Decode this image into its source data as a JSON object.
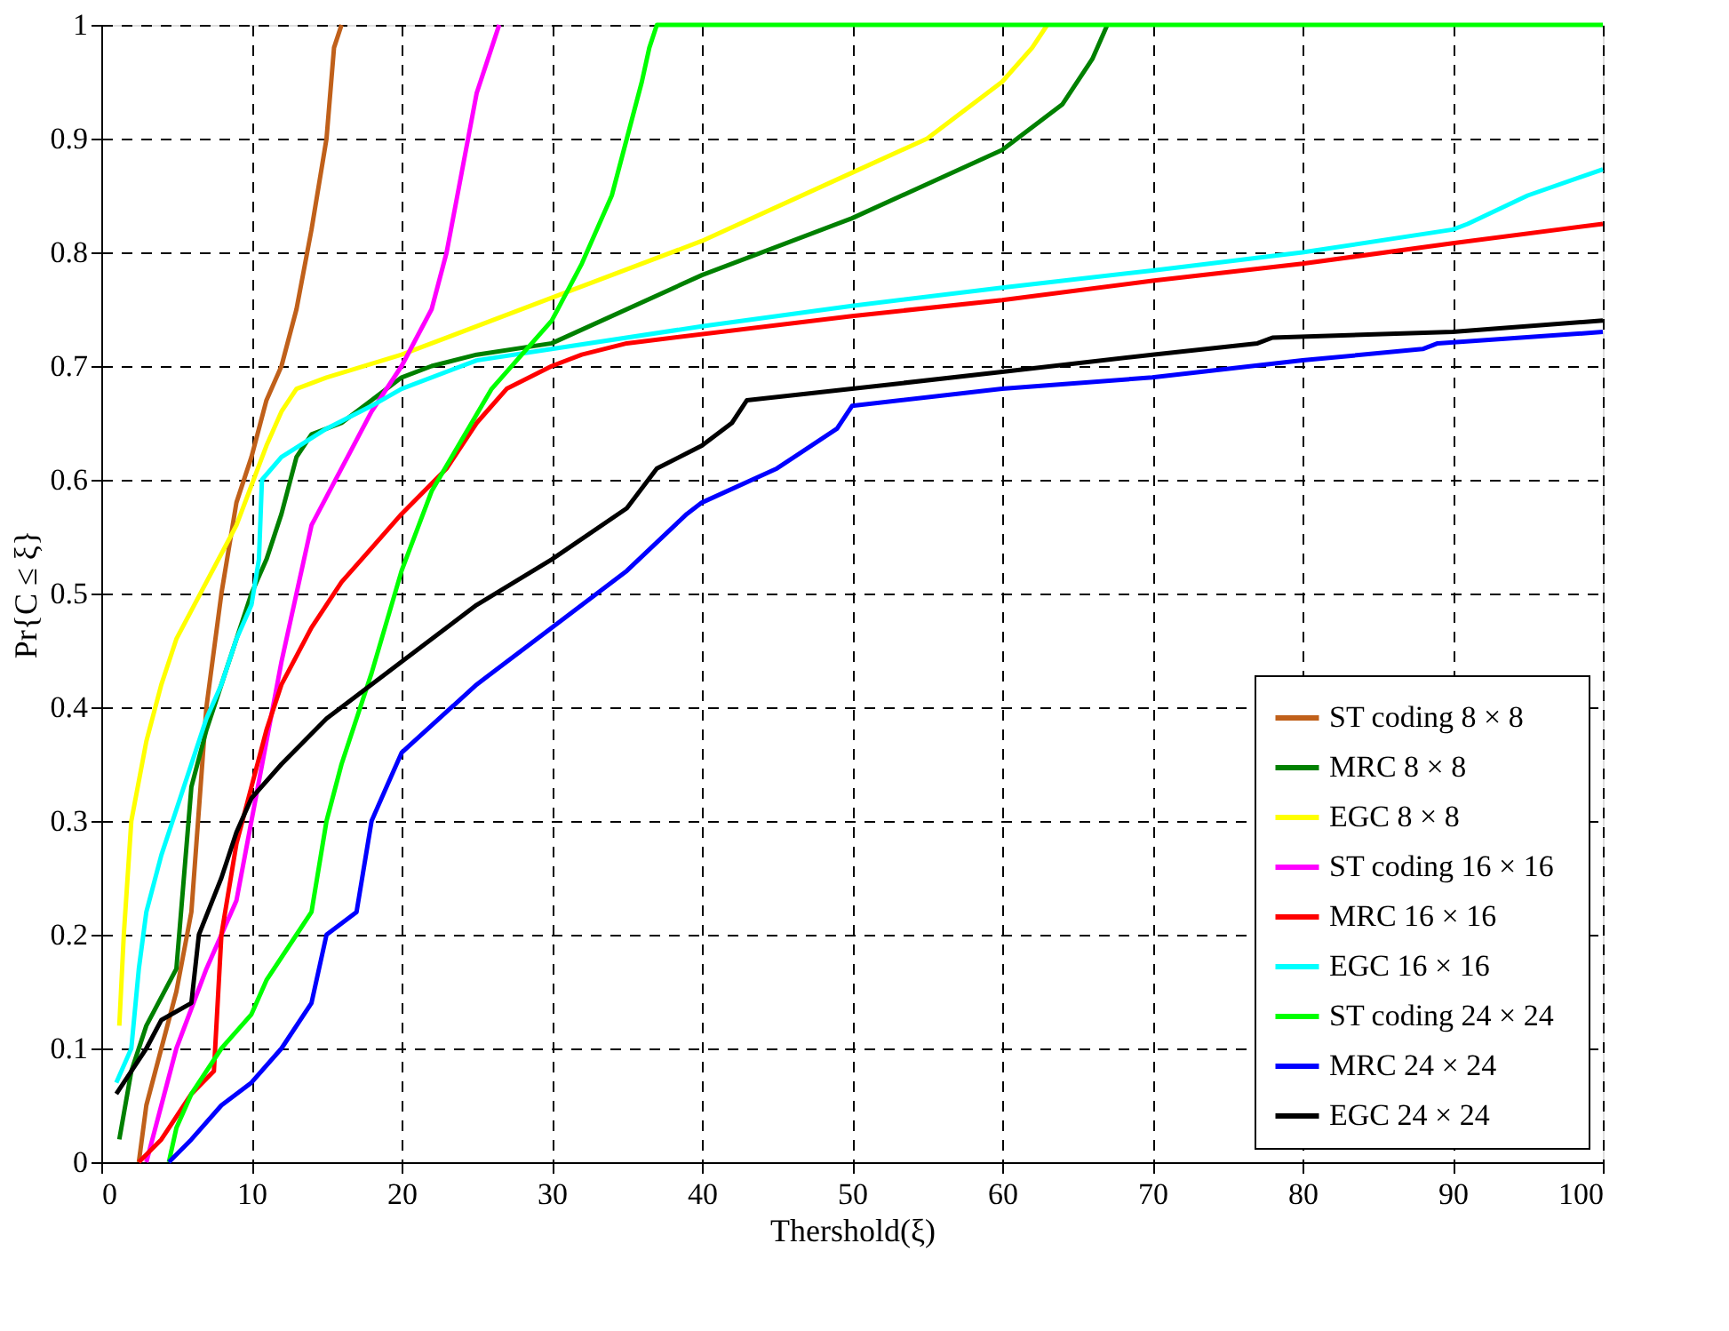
{
  "chart_data": {
    "type": "line",
    "xlabel": "Thershold(ξ)",
    "ylabel": "Pr{C ≤ ξ}",
    "xlim": [
      0,
      100
    ],
    "ylim": [
      0,
      1
    ],
    "xticks": [
      0,
      10,
      20,
      30,
      40,
      50,
      60,
      70,
      80,
      90,
      100
    ],
    "yticks": [
      0,
      0.1,
      0.2,
      0.3,
      0.4,
      0.5,
      0.6,
      0.7,
      0.8,
      0.9,
      1
    ],
    "grid": true,
    "line_style": "solid",
    "marker": "none",
    "legend": "bottom right",
    "series": [
      {
        "name": "ST coding   8 × 8",
        "color": "#c0601a",
        "x": [
          2.5,
          3,
          4,
          5,
          6,
          7,
          8,
          9,
          10,
          11,
          12,
          13,
          14,
          15,
          15.5,
          16
        ],
        "values": [
          0,
          0.05,
          0.1,
          0.15,
          0.22,
          0.4,
          0.5,
          0.58,
          0.62,
          0.67,
          0.7,
          0.75,
          0.82,
          0.9,
          0.98,
          1
        ]
      },
      {
        "name": "MRC   8 × 8",
        "color": "#008000",
        "x": [
          1.2,
          2,
          3,
          5,
          5.5,
          6,
          7,
          8,
          9,
          10,
          11,
          12,
          13,
          14,
          16,
          18,
          20,
          22,
          25,
          30,
          40,
          50,
          60,
          64,
          66,
          67
        ],
        "values": [
          0.02,
          0.08,
          0.12,
          0.17,
          0.25,
          0.33,
          0.38,
          0.42,
          0.46,
          0.5,
          0.53,
          0.57,
          0.62,
          0.64,
          0.65,
          0.67,
          0.69,
          0.7,
          0.71,
          0.72,
          0.78,
          0.83,
          0.89,
          0.93,
          0.97,
          1
        ]
      },
      {
        "name": "EGC   8 × 8",
        "color": "#ffff00",
        "x": [
          1.2,
          1.5,
          2,
          3,
          4,
          5,
          7,
          9,
          11,
          12,
          13,
          15,
          20,
          30,
          40,
          50,
          55,
          60,
          62,
          63
        ],
        "values": [
          0.12,
          0.2,
          0.3,
          0.37,
          0.42,
          0.46,
          0.51,
          0.56,
          0.63,
          0.66,
          0.68,
          0.69,
          0.71,
          0.76,
          0.81,
          0.87,
          0.9,
          0.95,
          0.98,
          1
        ]
      },
      {
        "name": "ST coding   16 × 16",
        "color": "#ff00ff",
        "x": [
          3,
          4,
          5,
          7,
          9,
          10,
          11,
          12,
          13,
          14,
          16,
          18,
          20,
          22,
          23,
          24,
          25,
          26,
          26.5
        ],
        "values": [
          0,
          0.05,
          0.1,
          0.17,
          0.23,
          0.3,
          0.37,
          0.44,
          0.5,
          0.56,
          0.61,
          0.66,
          0.7,
          0.75,
          0.8,
          0.87,
          0.94,
          0.98,
          1
        ]
      },
      {
        "name": "MRC   16 × 16",
        "color": "#ff0000",
        "x": [
          2.5,
          4,
          6,
          7.5,
          8,
          9,
          10,
          11,
          12,
          14,
          16,
          18,
          20,
          23,
          25,
          27,
          30,
          32,
          35,
          50,
          60,
          70,
          80,
          90,
          100
        ],
        "values": [
          0,
          0.02,
          0.06,
          0.08,
          0.2,
          0.28,
          0.33,
          0.38,
          0.42,
          0.47,
          0.51,
          0.54,
          0.57,
          0.61,
          0.65,
          0.68,
          0.7,
          0.71,
          0.72,
          0.744,
          0.758,
          0.775,
          0.79,
          0.808,
          0.825
        ]
      },
      {
        "name": "EGC   16 × 16",
        "color": "#00ffff",
        "x": [
          1,
          2,
          2.5,
          3,
          4,
          5,
          6,
          7,
          8,
          9,
          10,
          10.5,
          10.7,
          12,
          15,
          18,
          20,
          25,
          30,
          40,
          50,
          60,
          70,
          80,
          90,
          91,
          95,
          100
        ],
        "values": [
          0.07,
          0.1,
          0.17,
          0.22,
          0.27,
          0.31,
          0.35,
          0.39,
          0.42,
          0.46,
          0.49,
          0.53,
          0.6,
          0.62,
          0.645,
          0.665,
          0.68,
          0.705,
          0.715,
          0.735,
          0.753,
          0.769,
          0.784,
          0.8,
          0.82,
          0.825,
          0.85,
          0.873
        ]
      },
      {
        "name": "ST coding   24 × 24",
        "color": "#00ff00",
        "x": [
          4.5,
          5,
          6,
          8,
          10,
          11,
          13,
          14,
          15,
          16,
          18,
          20,
          22,
          26,
          30,
          32,
          34,
          35,
          36,
          36.5,
          37,
          100
        ],
        "values": [
          0,
          0.03,
          0.06,
          0.1,
          0.13,
          0.16,
          0.2,
          0.22,
          0.3,
          0.35,
          0.43,
          0.52,
          0.59,
          0.68,
          0.74,
          0.79,
          0.85,
          0.9,
          0.95,
          0.98,
          1,
          1
        ]
      },
      {
        "name": "MRC   24 × 24",
        "color": "#0000ff",
        "x": [
          4.5,
          6,
          8,
          10,
          12,
          14,
          15,
          17,
          18,
          19,
          20,
          25,
          30,
          35,
          39,
          40,
          45,
          49,
          50,
          60,
          70,
          80,
          88,
          89,
          100
        ],
        "values": [
          0,
          0.02,
          0.05,
          0.07,
          0.1,
          0.14,
          0.2,
          0.22,
          0.3,
          0.33,
          0.36,
          0.42,
          0.47,
          0.52,
          0.57,
          0.58,
          0.61,
          0.645,
          0.665,
          0.68,
          0.69,
          0.705,
          0.715,
          0.72,
          0.73
        ]
      },
      {
        "name": "EGC   24 × 24",
        "color": "#000000",
        "x": [
          1,
          2,
          3,
          4,
          6,
          6.5,
          8,
          9,
          10,
          12,
          15,
          20,
          25,
          30,
          35,
          37,
          40,
          42,
          43,
          50,
          60,
          70,
          77,
          78,
          90,
          100
        ],
        "values": [
          0.06,
          0.08,
          0.1,
          0.125,
          0.14,
          0.2,
          0.25,
          0.29,
          0.32,
          0.35,
          0.39,
          0.44,
          0.49,
          0.53,
          0.575,
          0.61,
          0.63,
          0.65,
          0.67,
          0.68,
          0.695,
          0.71,
          0.72,
          0.725,
          0.73,
          0.74
        ]
      }
    ]
  }
}
